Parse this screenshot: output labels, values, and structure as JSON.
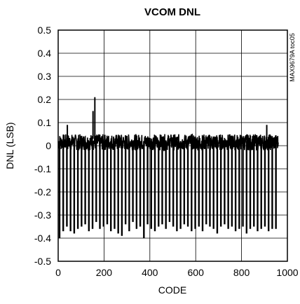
{
  "chart_data": {
    "type": "line",
    "title": "VCOM DNL",
    "xlabel": "CODE",
    "ylabel": "DNL (LSB)",
    "side_note": "MAX9679A toc05",
    "xlim": [
      0,
      1000
    ],
    "ylim": [
      -0.5,
      0.5
    ],
    "x_ticks": [
      0,
      200,
      400,
      600,
      800,
      1000
    ],
    "x_tick_labels": [
      "0",
      "200",
      "400",
      "600",
      "800",
      "1000"
    ],
    "y_ticks": [
      0.5,
      0.4,
      0.3,
      0.2,
      0.1,
      0,
      -0.1,
      -0.2,
      -0.3,
      -0.4,
      -0.5
    ],
    "y_tick_labels": [
      "0.5",
      "0.4",
      "0.3",
      "0.2",
      "0.1",
      "0",
      "-0.1",
      "-0.2",
      "-0.3",
      "-0.4",
      "-0.5"
    ],
    "grid": true,
    "line_color": "#000000",
    "series": [
      {
        "baseline_band": [
          -0.02,
          0.05
        ],
        "code_range": [
          0,
          960
        ],
        "spike_period": 16,
        "spike_depths": [
          -0.4,
          -0.37,
          -0.35,
          -0.37,
          -0.38,
          -0.36,
          -0.35,
          -0.34,
          -0.37,
          -0.36,
          -0.33,
          -0.36,
          -0.35,
          -0.34,
          -0.37,
          -0.36,
          -0.38,
          -0.39,
          -0.34,
          -0.37,
          -0.33,
          -0.36,
          -0.35,
          -0.4,
          -0.34,
          -0.36,
          -0.37,
          -0.35,
          -0.34,
          -0.36,
          -0.33,
          -0.35,
          -0.37,
          -0.36,
          -0.34,
          -0.35,
          -0.37,
          -0.36,
          -0.35,
          -0.37,
          -0.34,
          -0.35,
          -0.36,
          -0.38,
          -0.35,
          -0.34,
          -0.36,
          -0.35,
          -0.37,
          -0.36,
          -0.35,
          -0.38,
          -0.36,
          -0.35,
          -0.37,
          -0.36,
          -0.35,
          -0.37,
          -0.36,
          -0.36
        ],
        "positive_spikes": [
          {
            "x": 160,
            "y": 0.21
          },
          {
            "x": 152,
            "y": 0.15
          },
          {
            "x": 40,
            "y": 0.09
          },
          {
            "x": 910,
            "y": 0.09
          }
        ]
      }
    ]
  }
}
